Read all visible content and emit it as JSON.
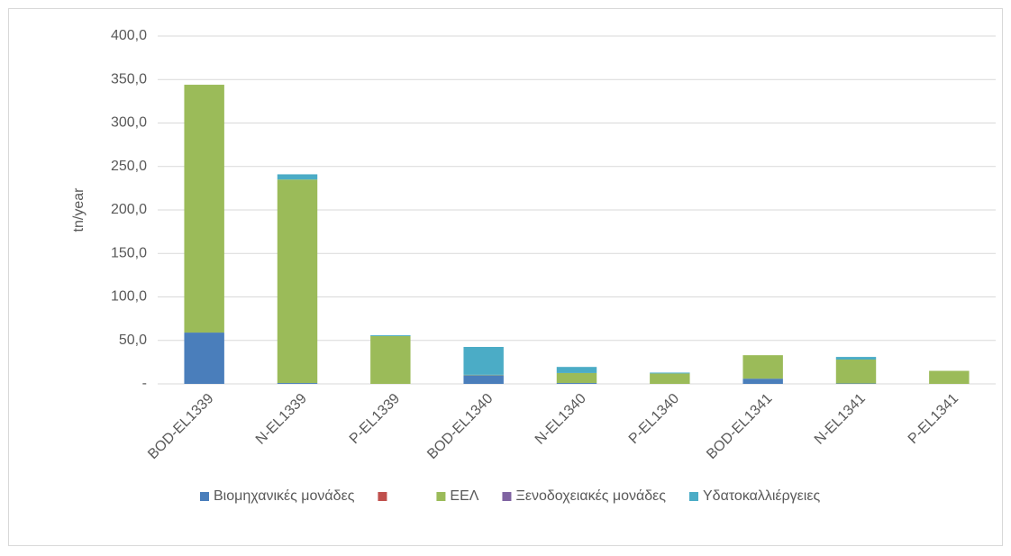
{
  "chart_data": {
    "type": "stacked_bar",
    "y_label": "tn/year",
    "categories": [
      "BOD-EL1339",
      "N-EL1339",
      "P-EL1339",
      "BOD-EL1340",
      "N-EL1340",
      "P-EL1340",
      "BOD-EL1341",
      "N-EL1341",
      "P-EL1341"
    ],
    "series": [
      {
        "name": "Βιομηχανικές μονάδες",
        "color": "#4a7ebb",
        "values": [
          59,
          1,
          0,
          10,
          1,
          0,
          6,
          0.5,
          0
        ]
      },
      {
        "color": "#c0504d",
        "values": [
          0,
          0,
          0,
          0,
          0,
          0,
          0,
          0,
          0
        ]
      },
      {
        "name": "ΕΕΛ",
        "color": "#9bbb59",
        "values": [
          285,
          234,
          55,
          0.5,
          11.5,
          12,
          27,
          27.5,
          15
        ]
      },
      {
        "name": "Ξενοδοχειακές μονάδες",
        "color": "#8064a2",
        "values": [
          0,
          0,
          0,
          0,
          0,
          0,
          0,
          0,
          0
        ]
      },
      {
        "name": "Υδατοκαλλιέργειες",
        "color": "#4bacc6",
        "values": [
          0,
          6,
          1,
          32,
          7,
          1,
          0,
          3,
          0
        ]
      }
    ],
    "ylim": [
      0,
      400
    ],
    "yticks": [
      {
        "value": 0,
        "label": "-"
      },
      {
        "value": 50,
        "label": "50,0"
      },
      {
        "value": 100,
        "label": "100,0"
      },
      {
        "value": 150,
        "label": "150,0"
      },
      {
        "value": 200,
        "label": "200,0"
      },
      {
        "value": 250,
        "label": "250,0"
      },
      {
        "value": 300,
        "label": "300,0"
      },
      {
        "value": 350,
        "label": "350,0"
      },
      {
        "value": 400,
        "label": "400,0"
      }
    ],
    "grid": true,
    "legend": "bottom"
  }
}
